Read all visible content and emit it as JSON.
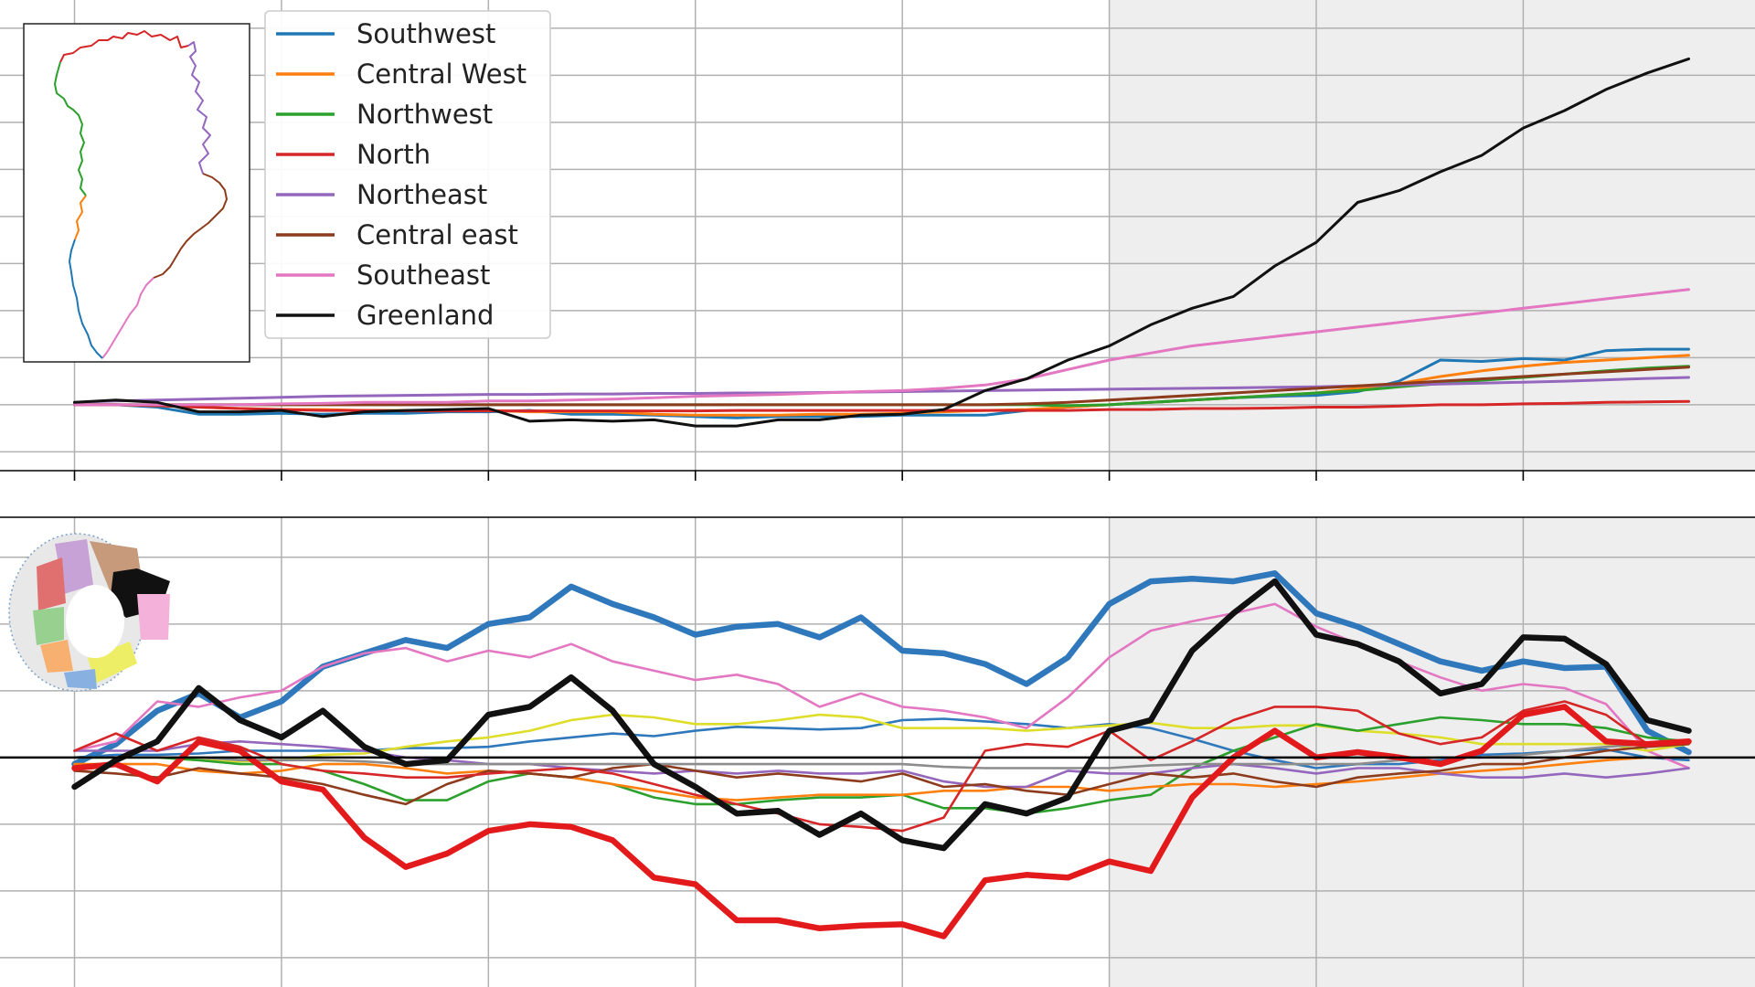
{
  "chart_data": [
    {
      "type": "line",
      "x": [
        1980,
        1981,
        1982,
        1983,
        1984,
        1985,
        1986,
        1987,
        1988,
        1989,
        1990,
        1991,
        1992,
        1993,
        1994,
        1995,
        1996,
        1997,
        1998,
        1999,
        2000,
        2001,
        2002,
        2003,
        2004,
        2005,
        2006,
        2007,
        2008,
        2009,
        2010,
        2011,
        2012,
        2013,
        2014,
        2015,
        2016,
        2017,
        2018,
        2019
      ],
      "xlim": [
        1978.2,
        2020.6
      ],
      "ylim": [
        -1.4,
        8.6
      ],
      "shaded_x_range": [
        2005,
        2020.6
      ],
      "grid": true,
      "legend_position": "upper left",
      "series": [
        {
          "name": "Southwest",
          "color": "#1f77b4",
          "values": [
            0.0,
            0.0,
            -0.05,
            -0.2,
            -0.2,
            -0.18,
            -0.2,
            -0.18,
            -0.18,
            -0.15,
            -0.15,
            -0.12,
            -0.2,
            -0.2,
            -0.22,
            -0.25,
            -0.28,
            -0.25,
            -0.25,
            -0.25,
            -0.22,
            -0.22,
            -0.22,
            -0.12,
            -0.05,
            0.0,
            0.05,
            0.1,
            0.15,
            0.18,
            0.2,
            0.28,
            0.5,
            0.95,
            0.92,
            0.98,
            0.95,
            1.15,
            1.18,
            1.18
          ]
        },
        {
          "name": "Central West",
          "color": "#ff7f0e",
          "values": [
            0.0,
            0.0,
            -0.02,
            -0.05,
            -0.08,
            -0.1,
            -0.1,
            -0.12,
            -0.12,
            -0.12,
            -0.12,
            -0.15,
            -0.15,
            -0.15,
            -0.2,
            -0.22,
            -0.22,
            -0.22,
            -0.2,
            -0.2,
            -0.18,
            -0.15,
            -0.12,
            -0.1,
            -0.05,
            0.0,
            0.05,
            0.1,
            0.15,
            0.2,
            0.25,
            0.35,
            0.45,
            0.6,
            0.72,
            0.82,
            0.9,
            0.95,
            1.0,
            1.05
          ]
        },
        {
          "name": "Northwest",
          "color": "#2ca02c",
          "values": [
            0.0,
            0.0,
            0.0,
            0.0,
            0.0,
            0.0,
            0.0,
            0.0,
            0.0,
            0.0,
            0.0,
            0.0,
            0.0,
            0.0,
            0.0,
            0.0,
            0.0,
            0.0,
            0.0,
            0.0,
            0.0,
            0.0,
            0.0,
            0.0,
            -0.02,
            0.0,
            0.05,
            0.1,
            0.15,
            0.2,
            0.25,
            0.3,
            0.38,
            0.45,
            0.52,
            0.58,
            0.65,
            0.72,
            0.78,
            0.82
          ]
        },
        {
          "name": "North",
          "color": "#d62728",
          "values": [
            0.0,
            0.0,
            -0.02,
            -0.05,
            -0.08,
            -0.1,
            -0.12,
            -0.12,
            -0.13,
            -0.13,
            -0.13,
            -0.13,
            -0.13,
            -0.13,
            -0.13,
            -0.13,
            -0.12,
            -0.12,
            -0.12,
            -0.12,
            -0.12,
            -0.12,
            -0.12,
            -0.12,
            -0.12,
            -0.1,
            -0.1,
            -0.08,
            -0.08,
            -0.07,
            -0.05,
            -0.05,
            -0.03,
            0.0,
            0.0,
            0.02,
            0.03,
            0.05,
            0.06,
            0.07
          ]
        },
        {
          "name": "Northeast",
          "color": "#9467bd",
          "values": [
            0.05,
            0.08,
            0.1,
            0.12,
            0.14,
            0.16,
            0.18,
            0.19,
            0.2,
            0.21,
            0.22,
            0.22,
            0.23,
            0.23,
            0.24,
            0.24,
            0.25,
            0.25,
            0.26,
            0.27,
            0.28,
            0.29,
            0.3,
            0.31,
            0.32,
            0.33,
            0.34,
            0.35,
            0.36,
            0.37,
            0.38,
            0.4,
            0.42,
            0.44,
            0.46,
            0.48,
            0.5,
            0.53,
            0.56,
            0.58
          ]
        },
        {
          "name": "Central east",
          "color": "#8c3c1c",
          "values": [
            0.0,
            0.0,
            0.0,
            0.0,
            0.0,
            0.0,
            0.0,
            0.0,
            0.0,
            0.0,
            0.0,
            0.0,
            0.0,
            0.0,
            0.0,
            0.0,
            0.0,
            0.0,
            0.0,
            0.0,
            0.0,
            0.0,
            0.0,
            0.02,
            0.05,
            0.1,
            0.15,
            0.2,
            0.25,
            0.3,
            0.35,
            0.4,
            0.45,
            0.5,
            0.55,
            0.6,
            0.65,
            0.7,
            0.75,
            0.8
          ]
        },
        {
          "name": "Southeast",
          "color": "#e377c2",
          "values": [
            0.0,
            0.0,
            0.0,
            0.0,
            0.0,
            0.02,
            0.03,
            0.05,
            0.05,
            0.05,
            0.08,
            0.08,
            0.1,
            0.12,
            0.15,
            0.18,
            0.2,
            0.22,
            0.25,
            0.28,
            0.3,
            0.35,
            0.42,
            0.55,
            0.75,
            0.95,
            1.1,
            1.25,
            1.35,
            1.45,
            1.55,
            1.65,
            1.75,
            1.85,
            1.95,
            2.05,
            2.15,
            2.25,
            2.35,
            2.45
          ]
        },
        {
          "name": "Greenland",
          "color": "#111111",
          "values": [
            0.05,
            0.1,
            0.05,
            -0.15,
            -0.15,
            -0.12,
            -0.25,
            -0.15,
            -0.12,
            -0.1,
            -0.08,
            -0.35,
            -0.32,
            -0.35,
            -0.32,
            -0.45,
            -0.45,
            -0.32,
            -0.32,
            -0.22,
            -0.2,
            -0.1,
            0.3,
            0.55,
            0.95,
            1.25,
            1.7,
            2.05,
            2.3,
            2.95,
            3.45,
            4.3,
            4.55,
            4.95,
            5.3,
            5.88,
            6.25,
            6.7,
            7.05,
            7.35
          ]
        }
      ]
    },
    {
      "type": "line",
      "x": [
        1980,
        1981,
        1982,
        1983,
        1984,
        1985,
        1986,
        1987,
        1988,
        1989,
        1990,
        1991,
        1992,
        1993,
        1994,
        1995,
        1996,
        1997,
        1998,
        1999,
        2000,
        2001,
        2002,
        2003,
        2004,
        2005,
        2006,
        2007,
        2008,
        2009,
        2010,
        2011,
        2012,
        2013,
        2014,
        2015,
        2016,
        2017,
        2018,
        2019
      ],
      "xlim": [
        1978.2,
        2020.6
      ],
      "ylim": [
        -1.72,
        1.8
      ],
      "shaded_x_range": [
        2005,
        2020.6
      ],
      "grid": true,
      "zero_line": true,
      "series": [
        {
          "color": "#2f78bb",
          "width": "thick",
          "values": [
            -0.05,
            0.1,
            0.35,
            0.48,
            0.3,
            0.42,
            0.68,
            0.78,
            0.88,
            0.82,
            1.0,
            1.05,
            1.28,
            1.15,
            1.05,
            0.92,
            0.98,
            1.0,
            0.9,
            1.05,
            0.8,
            0.78,
            0.7,
            0.55,
            0.75,
            1.15,
            1.32,
            1.34,
            1.32,
            1.38,
            1.08,
            0.98,
            0.85,
            0.72,
            0.65,
            0.72,
            0.67,
            0.68,
            0.2,
            0.04
          ]
        },
        {
          "color": "#2f78bb",
          "values": [
            0.0,
            0.02,
            0.02,
            0.03,
            0.05,
            0.05,
            0.05,
            0.05,
            0.07,
            0.07,
            0.08,
            0.12,
            0.15,
            0.18,
            0.16,
            0.2,
            0.23,
            0.22,
            0.21,
            0.22,
            0.28,
            0.29,
            0.27,
            0.25,
            0.22,
            0.25,
            0.22,
            0.14,
            0.05,
            -0.02,
            -0.08,
            -0.05,
            -0.05,
            -0.02,
            0.02,
            0.03,
            0.05,
            0.06,
            0.0,
            -0.02
          ]
        },
        {
          "color": "#e377c2",
          "values": [
            0.05,
            0.12,
            0.42,
            0.38,
            0.45,
            0.5,
            0.68,
            0.78,
            0.82,
            0.72,
            0.8,
            0.75,
            0.85,
            0.72,
            0.65,
            0.58,
            0.62,
            0.55,
            0.38,
            0.48,
            0.38,
            0.35,
            0.3,
            0.22,
            0.45,
            0.75,
            0.95,
            1.02,
            1.08,
            1.15,
            0.98,
            0.85,
            0.72,
            0.6,
            0.5,
            0.55,
            0.52,
            0.4,
            0.05,
            -0.08
          ]
        },
        {
          "color": "#dede2a",
          "values": [
            0.0,
            0.0,
            0.0,
            -0.02,
            -0.03,
            -0.02,
            0.02,
            0.03,
            0.08,
            0.12,
            0.15,
            0.2,
            0.28,
            0.32,
            0.3,
            0.25,
            0.25,
            0.28,
            0.32,
            0.3,
            0.22,
            0.22,
            0.22,
            0.2,
            0.22,
            0.24,
            0.26,
            0.22,
            0.22,
            0.24,
            0.24,
            0.2,
            0.18,
            0.15,
            0.1,
            0.1,
            0.1,
            0.1,
            0.05,
            0.1
          ]
        },
        {
          "color": "#2ca02c",
          "values": [
            0.0,
            0.0,
            0.0,
            -0.02,
            -0.05,
            -0.05,
            -0.1,
            -0.2,
            -0.32,
            -0.32,
            -0.18,
            -0.12,
            -0.15,
            -0.2,
            -0.3,
            -0.35,
            -0.35,
            -0.32,
            -0.3,
            -0.3,
            -0.28,
            -0.38,
            -0.38,
            -0.42,
            -0.38,
            -0.32,
            -0.28,
            -0.08,
            0.05,
            0.15,
            0.25,
            0.2,
            0.25,
            0.3,
            0.28,
            0.25,
            0.25,
            0.22,
            0.15,
            0.12
          ]
        },
        {
          "color": "#ff7f0e",
          "values": [
            -0.05,
            -0.05,
            -0.05,
            -0.1,
            -0.12,
            -0.1,
            -0.05,
            -0.05,
            -0.08,
            -0.12,
            -0.1,
            -0.12,
            -0.15,
            -0.2,
            -0.25,
            -0.3,
            -0.32,
            -0.3,
            -0.28,
            -0.28,
            -0.28,
            -0.25,
            -0.25,
            -0.22,
            -0.22,
            -0.25,
            -0.22,
            -0.2,
            -0.2,
            -0.22,
            -0.2,
            -0.18,
            -0.15,
            -0.12,
            -0.1,
            -0.08,
            -0.05,
            -0.02,
            0.0,
            0.0
          ]
        },
        {
          "color": "#9467bd",
          "values": [
            0.05,
            0.05,
            0.05,
            0.1,
            0.12,
            0.1,
            0.08,
            0.05,
            0.0,
            -0.02,
            -0.05,
            -0.05,
            -0.08,
            -0.1,
            -0.12,
            -0.1,
            -0.12,
            -0.1,
            -0.12,
            -0.12,
            -0.1,
            -0.18,
            -0.22,
            -0.22,
            -0.1,
            -0.12,
            -0.12,
            -0.08,
            -0.05,
            -0.08,
            -0.12,
            -0.08,
            -0.08,
            -0.12,
            -0.15,
            -0.15,
            -0.12,
            -0.15,
            -0.12,
            -0.08
          ]
        },
        {
          "color": "#8c3c1c",
          "values": [
            -0.1,
            -0.12,
            -0.15,
            -0.08,
            -0.12,
            -0.15,
            -0.2,
            -0.28,
            -0.35,
            -0.2,
            -0.1,
            -0.12,
            -0.15,
            -0.08,
            -0.05,
            -0.1,
            -0.15,
            -0.12,
            -0.15,
            -0.18,
            -0.12,
            -0.22,
            -0.2,
            -0.25,
            -0.28,
            -0.2,
            -0.12,
            -0.15,
            -0.12,
            -0.18,
            -0.22,
            -0.15,
            -0.12,
            -0.1,
            -0.05,
            -0.05,
            0.0,
            0.05,
            0.08,
            0.1
          ]
        },
        {
          "color": "#8c8c8c",
          "values": [
            0.0,
            0.0,
            0.0,
            0.0,
            -0.02,
            -0.02,
            -0.02,
            -0.03,
            -0.05,
            -0.05,
            -0.05,
            -0.05,
            -0.05,
            -0.05,
            -0.05,
            -0.05,
            -0.05,
            -0.05,
            -0.05,
            -0.05,
            -0.05,
            -0.07,
            -0.08,
            -0.08,
            -0.08,
            -0.08,
            -0.06,
            -0.05,
            -0.05,
            -0.05,
            -0.05,
            -0.05,
            -0.02,
            0.0,
            0.0,
            0.02,
            0.05,
            0.08,
            0.1,
            0.12
          ]
        },
        {
          "color": "#d62728",
          "values": [
            0.05,
            0.18,
            0.05,
            0.15,
            0.08,
            -0.05,
            -0.1,
            -0.12,
            -0.15,
            -0.15,
            -0.12,
            -0.1,
            -0.08,
            -0.12,
            -0.2,
            -0.28,
            -0.35,
            -0.42,
            -0.5,
            -0.52,
            -0.55,
            -0.45,
            0.05,
            0.1,
            0.08,
            0.2,
            -0.02,
            0.12,
            0.28,
            0.38,
            0.38,
            0.35,
            0.18,
            0.1,
            0.15,
            0.35,
            0.42,
            0.32,
            0.1,
            0.12
          ]
        },
        {
          "color": "#e31a1c",
          "width": "thick",
          "values": [
            -0.08,
            -0.05,
            -0.18,
            0.12,
            0.05,
            -0.18,
            -0.24,
            -0.6,
            -0.82,
            -0.72,
            -0.55,
            -0.5,
            -0.52,
            -0.62,
            -0.9,
            -0.95,
            -1.22,
            -1.22,
            -1.28,
            -1.26,
            -1.25,
            -1.34,
            -0.92,
            -0.88,
            -0.9,
            -0.78,
            -0.85,
            -0.3,
            0.0,
            0.2,
            0.0,
            0.04,
            0.0,
            -0.05,
            0.05,
            0.32,
            0.38,
            0.12,
            0.1,
            0.12
          ]
        },
        {
          "color": "#111111",
          "width": "thick",
          "values": [
            -0.22,
            -0.02,
            0.12,
            0.52,
            0.28,
            0.15,
            0.35,
            0.08,
            -0.05,
            -0.02,
            0.32,
            0.38,
            0.6,
            0.35,
            -0.05,
            -0.22,
            -0.42,
            -0.4,
            -0.58,
            -0.42,
            -0.62,
            -0.68,
            -0.35,
            -0.42,
            -0.3,
            0.2,
            0.28,
            0.8,
            1.08,
            1.32,
            0.92,
            0.85,
            0.72,
            0.48,
            0.55,
            0.9,
            0.89,
            0.7,
            0.28,
            0.2
          ]
        }
      ]
    }
  ],
  "colors": {
    "background": "#ffffff",
    "shaded_region": "#eeeeee",
    "grid": "#b0b0b0",
    "axis": "#000000"
  },
  "insets": {
    "top": "greenland-coastline-region-map",
    "bottom": "basin-polar-projection-map"
  }
}
